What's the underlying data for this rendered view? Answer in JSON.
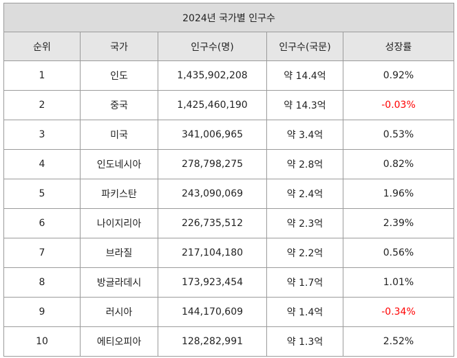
{
  "title": "2024년 국가별 인구수",
  "headers": {
    "rank": "순위",
    "country": "국가",
    "population_num": "인구수(명)",
    "population_kor": "인구수(국문)",
    "growth": "성장률"
  },
  "colors": {
    "negative": "#ff0000",
    "header_bg": "#e6e6e6",
    "title_bg": "#dcdcdc",
    "border": "#9a9a9a"
  },
  "rows": [
    {
      "rank": "1",
      "country": "인도",
      "population_num": "1,435,902,208",
      "population_kor": "약 14.4억",
      "growth": "0.92%",
      "negative": false
    },
    {
      "rank": "2",
      "country": "중국",
      "population_num": "1,425,460,190",
      "population_kor": "약 14.3억",
      "growth": "-0.03%",
      "negative": true
    },
    {
      "rank": "3",
      "country": "미국",
      "population_num": "341,006,965",
      "population_kor": "약 3.4억",
      "growth": "0.53%",
      "negative": false
    },
    {
      "rank": "4",
      "country": "인도네시아",
      "population_num": "278,798,275",
      "population_kor": "약 2.8억",
      "growth": "0.82%",
      "negative": false
    },
    {
      "rank": "5",
      "country": "파키스탄",
      "population_num": "243,090,069",
      "population_kor": "약 2.4억",
      "growth": "1.96%",
      "negative": false
    },
    {
      "rank": "6",
      "country": "나이지리아",
      "population_num": "226,735,512",
      "population_kor": "약 2.3억",
      "growth": "2.39%",
      "negative": false
    },
    {
      "rank": "7",
      "country": "브라질",
      "population_num": "217,104,180",
      "population_kor": "약 2.2억",
      "growth": "0.56%",
      "negative": false
    },
    {
      "rank": "8",
      "country": "방글라데시",
      "population_num": "173,923,454",
      "population_kor": "약 1.7억",
      "growth": "1.01%",
      "negative": false
    },
    {
      "rank": "9",
      "country": "러시아",
      "population_num": "144,170,609",
      "population_kor": "약 1.4억",
      "growth": "-0.34%",
      "negative": true
    },
    {
      "rank": "10",
      "country": "에티오피아",
      "population_num": "128,282,991",
      "population_kor": "약 1.3억",
      "growth": "2.52%",
      "negative": false
    }
  ]
}
